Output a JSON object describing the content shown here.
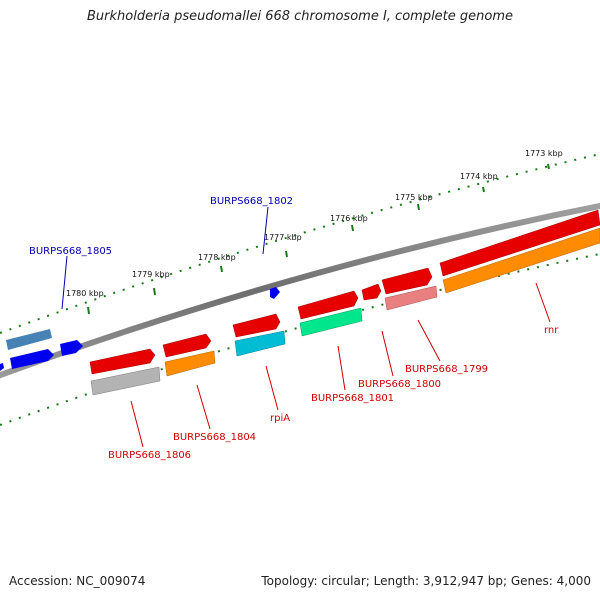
{
  "title": "Burkholderia pseudomallei 668 chromosome I, complete genome",
  "footer": {
    "accession": "Accession: NC_009074",
    "summary": "Topology: circular; Length: 3,912,947 bp; Genes: 4,000"
  },
  "scale_ticks": [
    "1773 kbp",
    "1774 kbp",
    "1775 kbp",
    "1776 kbp",
    "1777 kbp",
    "1778 kbp",
    "1779 kbp",
    "1780 kbp"
  ],
  "gene_labels": {
    "top": [
      "BURPS668_1802",
      "BURPS668_1805"
    ],
    "bottom": [
      "BURPS668_1806",
      "BURPS668_1804",
      "rpiA",
      "BURPS668_1801",
      "BURPS668_1800",
      "BURPS668_1799",
      "rnr"
    ]
  },
  "colors": {
    "backbone": "#7a7a7a",
    "scale": "#1a7a1a",
    "forward_gene": "#0000ee",
    "forward_label": "#0000aa",
    "reverse_gene": "#e60000",
    "reverse_label": "#cc0000",
    "cds_orange": "#ff8c00",
    "cds_grey": "#b3b3b3",
    "cds_cyan": "#00bcd4",
    "cds_green": "#00e68c",
    "cds_pink": "#e88080",
    "cds_steel": "#4682b4"
  }
}
